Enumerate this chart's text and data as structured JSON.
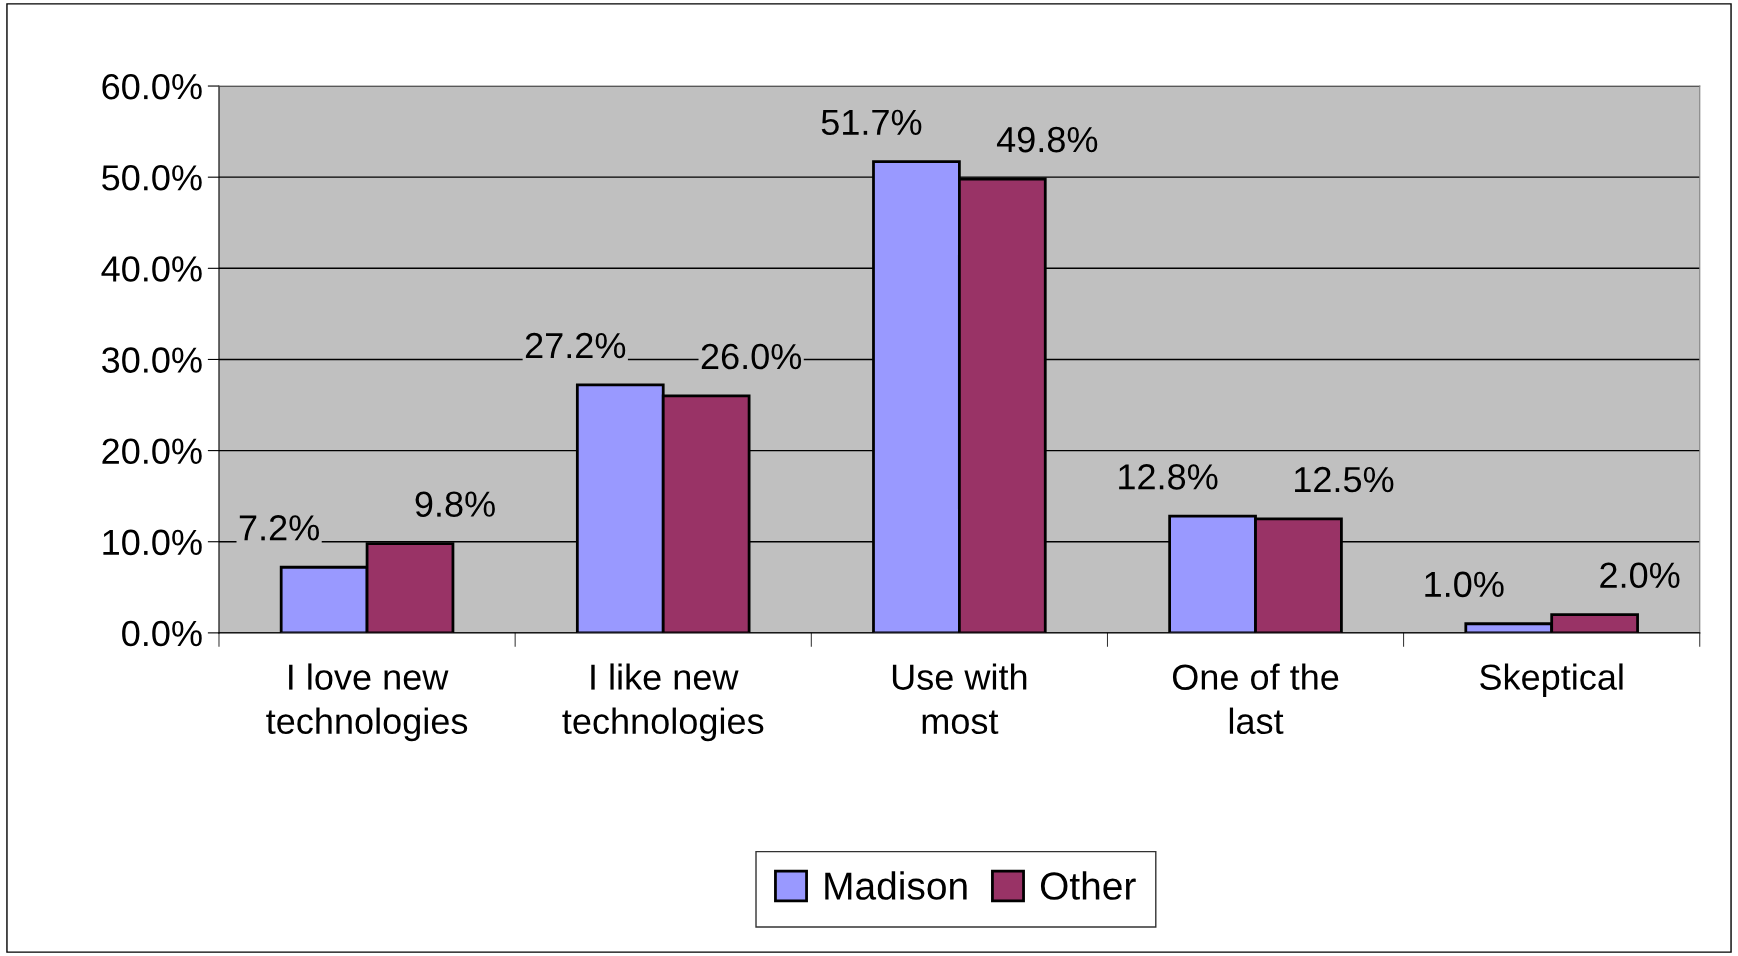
{
  "chart_data": {
    "type": "bar",
    "categories": [
      "I love new\ntechnologies",
      "I like new\ntechnologies",
      "Use with\nmost",
      "One of the\nlast",
      "Skeptical"
    ],
    "series": [
      {
        "name": "Madison",
        "color": "#9999ff",
        "values": [
          7.2,
          27.2,
          51.7,
          12.8,
          1.0
        ],
        "value_labels": [
          "7.2%",
          "27.2%",
          "51.7%",
          "12.8%",
          "1.0%"
        ]
      },
      {
        "name": "Other",
        "color": "#993366",
        "values": [
          9.8,
          26.0,
          49.8,
          12.5,
          2.0
        ],
        "value_labels": [
          "9.8%",
          "26.0%",
          "49.8%",
          "12.5%",
          "2.0%"
        ]
      }
    ],
    "ylim": [
      0,
      60
    ],
    "yticks": [
      {
        "value": 0,
        "label": "0.0%"
      },
      {
        "value": 10,
        "label": "10.0%"
      },
      {
        "value": 20,
        "label": "20.0%"
      },
      {
        "value": 30,
        "label": "30.0%"
      },
      {
        "value": 40,
        "label": "40.0%"
      },
      {
        "value": 50,
        "label": "50.0%"
      },
      {
        "value": 60,
        "label": "60.0%"
      }
    ],
    "grid": "y",
    "legend": "bottom"
  }
}
